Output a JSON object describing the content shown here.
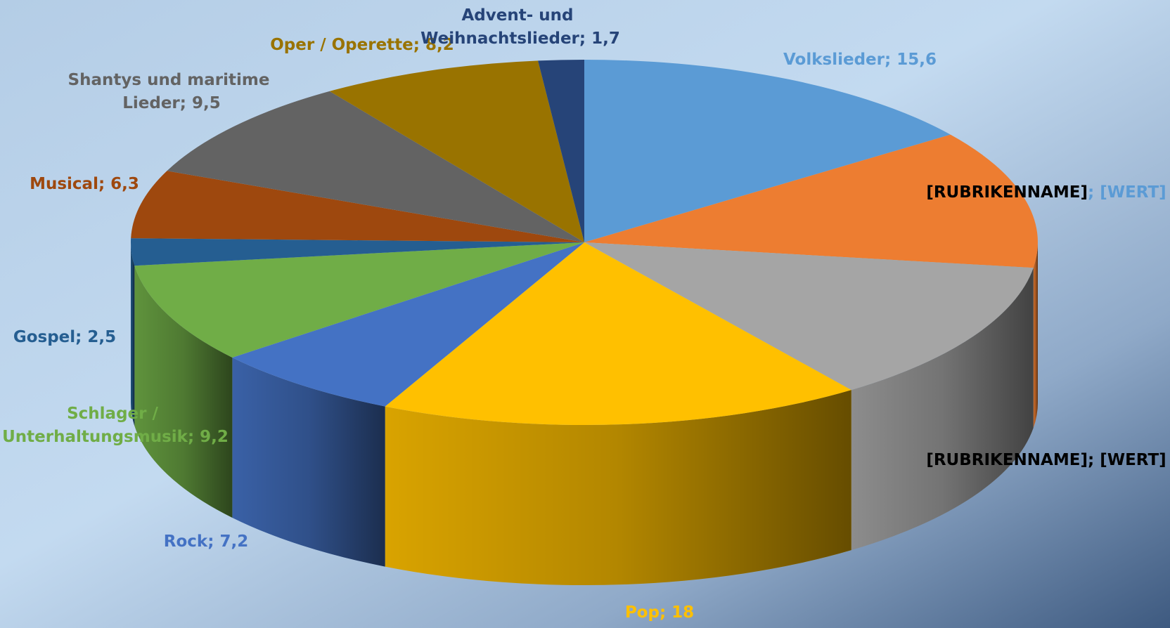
{
  "chart_data": {
    "type": "pie3d",
    "categories": [
      "Volkslieder",
      "[RUBRIKENNAME]",
      "[RUBRIKENNAME]",
      "Pop",
      "Rock",
      "Schlager / Unterhaltungsmusik",
      "Gospel",
      "Musical",
      "Shantys und maritime Lieder",
      "Oper / Operette",
      "Advent- und Weihnachtslieder"
    ],
    "values": [
      15.6,
      12.8,
      13.3,
      18,
      7.2,
      9.2,
      2.5,
      6.3,
      9.5,
      8.2,
      1.7
    ],
    "value_labels": [
      "15,6",
      "[WERT]",
      "[WERT]",
      "18",
      "7,2",
      "9,2",
      "2,5",
      "6,3",
      "9,5",
      "8,2",
      "1,7"
    ],
    "label_separator": "; ",
    "colors": [
      "#5b9bd5",
      "#ed7d31",
      "#a5a5a5",
      "#ffc000",
      "#4472c4",
      "#70ad47",
      "#255e91",
      "#9e480e",
      "#636363",
      "#997300",
      "#264478"
    ],
    "label_colors": [
      "#5b9bd5",
      "#000000",
      "#000000",
      "#ffc000",
      "#4472c4",
      "#70ad47",
      "#255e91",
      "#9e480e",
      "#636363",
      "#997300",
      "#264478"
    ],
    "value_label_colors": [
      "#5b9bd5",
      "#5b9bd5",
      "#000000",
      "#ffc000",
      "#4472c4",
      "#70ad47",
      "#255e91",
      "#9e480e",
      "#636363",
      "#997300",
      "#264478"
    ]
  }
}
